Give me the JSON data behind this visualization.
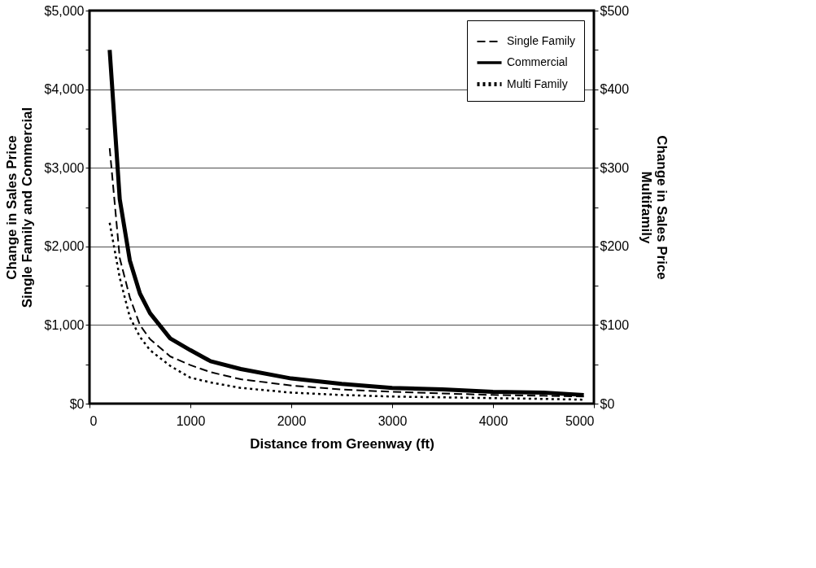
{
  "chart_data": {
    "type": "line",
    "xlabel": "Distance from Greenway (ft)",
    "ylabel": "Change in Sales Price\nSingle Family and Commercial",
    "y2label": "Change in Sales Price\nMultifamily",
    "xlim": [
      0,
      5000
    ],
    "xticks": [
      0,
      1000,
      2000,
      3000,
      4000,
      5000
    ],
    "ylim": [
      0,
      5000
    ],
    "yticks": [
      {
        "value": 0,
        "label": "$0"
      },
      {
        "value": 500,
        "label": null
      },
      {
        "value": 1000,
        "label": "$1,000"
      },
      {
        "value": 1500,
        "label": null
      },
      {
        "value": 2000,
        "label": "$2,000"
      },
      {
        "value": 2500,
        "label": null
      },
      {
        "value": 3000,
        "label": "$3,000"
      },
      {
        "value": 3500,
        "label": null
      },
      {
        "value": 4000,
        "label": "$4,000"
      },
      {
        "value": 4500,
        "label": null
      },
      {
        "value": 5000,
        "label": "$5,000"
      }
    ],
    "y2lim": [
      0,
      500
    ],
    "y2ticks": [
      {
        "value": 0,
        "label": "$0"
      },
      {
        "value": 50,
        "label": null
      },
      {
        "value": 100,
        "label": "$100"
      },
      {
        "value": 150,
        "label": null
      },
      {
        "value": 200,
        "label": "$200"
      },
      {
        "value": 250,
        "label": null
      },
      {
        "value": 300,
        "label": "$300"
      },
      {
        "value": 350,
        "label": null
      },
      {
        "value": 400,
        "label": "$400"
      },
      {
        "value": 450,
        "label": null
      },
      {
        "value": 500,
        "label": "$500"
      }
    ],
    "grid": "y",
    "legend": "top right",
    "marker": "none",
    "x": [
      200,
      300,
      400,
      500,
      600,
      800,
      1000,
      1200,
      1500,
      2000,
      2500,
      3000,
      3500,
      4000,
      4500,
      4900
    ],
    "series": [
      {
        "name": "Single Family",
        "color": "#000000",
        "line_style": "dashed",
        "values": [
          3250,
          1850,
          1350,
          1000,
          820,
          600,
          490,
          400,
          310,
          230,
          180,
          150,
          130,
          110,
          100,
          90
        ]
      },
      {
        "name": "Commercial",
        "color": "#000000",
        "line_style": "solid",
        "values": [
          4500,
          2600,
          1820,
          1400,
          1150,
          830,
          680,
          540,
          440,
          320,
          250,
          200,
          180,
          150,
          140,
          110
        ]
      },
      {
        "name": "Multi Family",
        "color": "#000000",
        "line_style": "dotted",
        "axis": "y2",
        "values": [
          230,
          160,
          110,
          85,
          68,
          48,
          33,
          27,
          20,
          14,
          11,
          9,
          8,
          7,
          6,
          5
        ]
      }
    ]
  }
}
